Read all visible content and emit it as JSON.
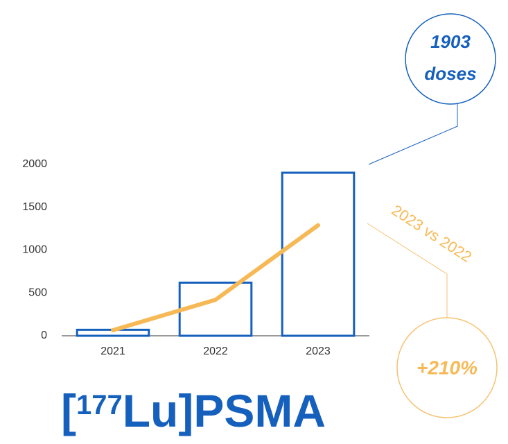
{
  "chart_data": {
    "type": "bar",
    "categories": [
      "2021",
      "2022",
      "2023"
    ],
    "series": [
      {
        "kind": "bar",
        "color": "#1560bd",
        "values": [
          70,
          620,
          1903
        ]
      },
      {
        "kind": "line",
        "color": "#f7b955",
        "values": [
          65,
          420,
          1290
        ]
      }
    ],
    "ylim": [
      0,
      2000
    ],
    "yticks": [
      0,
      500,
      1000,
      1500,
      2000
    ],
    "grid": false,
    "title": [
      "[",
      "177",
      "Lu]PSMA"
    ],
    "annotations": {
      "total": [
        "1903",
        "doses"
      ],
      "comparison": "2023 vs 2022",
      "growth": "+210%"
    }
  }
}
